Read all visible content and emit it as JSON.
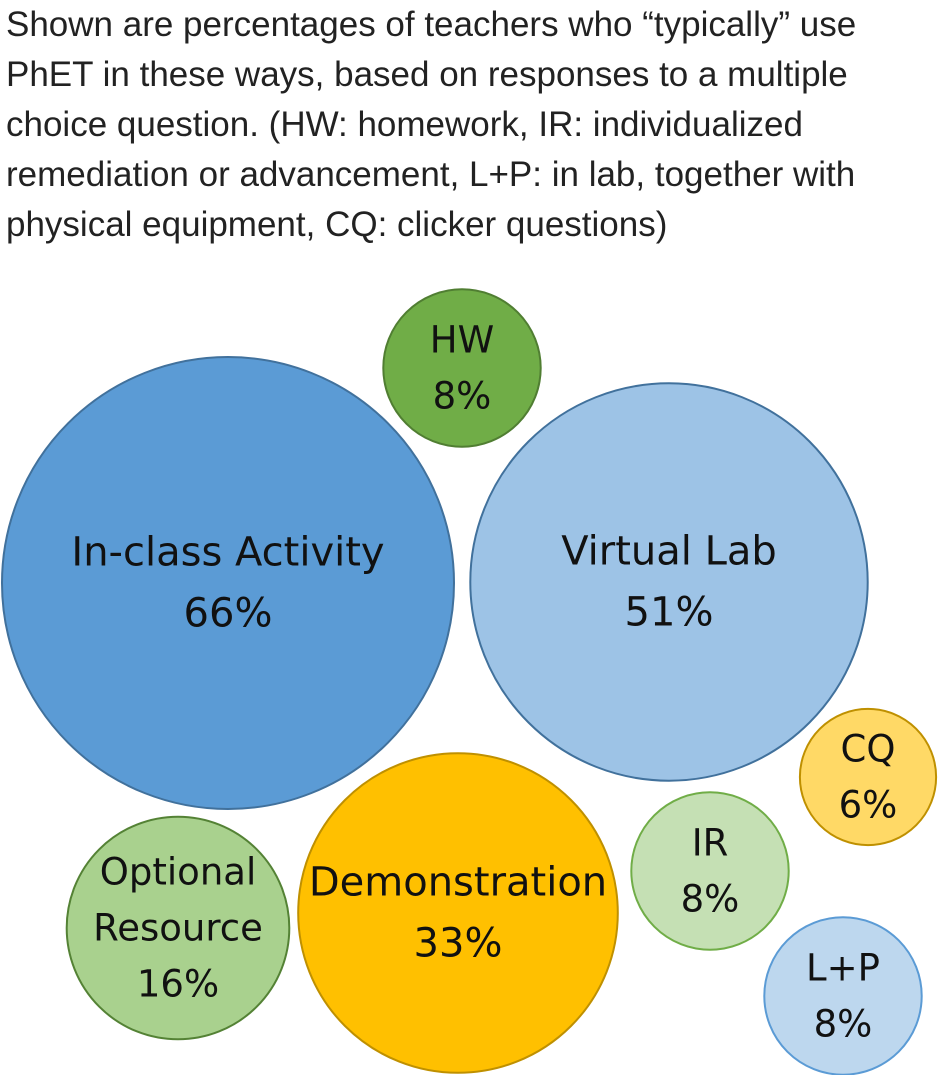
{
  "caption": "Shown are percentages of teachers who “typically” use PhET in these ways, based on responses to a multiple choice question. (HW: homework, IR: individualized remediation or advancement, L+P: in lab, together with physical equipment, CQ: clicker questions)",
  "chart_data": {
    "type": "bubble",
    "unit": "%",
    "items": [
      {
        "key": "in-class-activity",
        "label": [
          "In-class Activity"
        ],
        "value": 66,
        "value_text": "66%",
        "fill": "#5b9bd5",
        "stroke": "#41719c"
      },
      {
        "key": "virtual-lab",
        "label": [
          "Virtual Lab"
        ],
        "value": 51,
        "value_text": "51%",
        "fill": "#9dc3e6",
        "stroke": "#41719c"
      },
      {
        "key": "demonstration",
        "label": [
          "Demonstration"
        ],
        "value": 33,
        "value_text": "33%",
        "fill": "#ffc000",
        "stroke": "#bf9000"
      },
      {
        "key": "optional-resource",
        "label": [
          "Optional",
          "Resource"
        ],
        "value": 16,
        "value_text": "16%",
        "fill": "#a9d18e",
        "stroke": "#548235"
      },
      {
        "key": "hw",
        "label": [
          "HW"
        ],
        "value": 8,
        "value_text": "8%",
        "fill": "#70ad47",
        "stroke": "#507e32"
      },
      {
        "key": "ir",
        "label": [
          "IR"
        ],
        "value": 8,
        "value_text": "8%",
        "fill": "#c5e0b4",
        "stroke": "#70ad47"
      },
      {
        "key": "l-p",
        "label": [
          "L+P"
        ],
        "value": 8,
        "value_text": "8%",
        "fill": "#bdd7ee",
        "stroke": "#5b9bd5"
      },
      {
        "key": "cq",
        "label": [
          "CQ"
        ],
        "value": 6,
        "value_text": "6%",
        "fill": "#ffd966",
        "stroke": "#bf9000"
      }
    ]
  }
}
